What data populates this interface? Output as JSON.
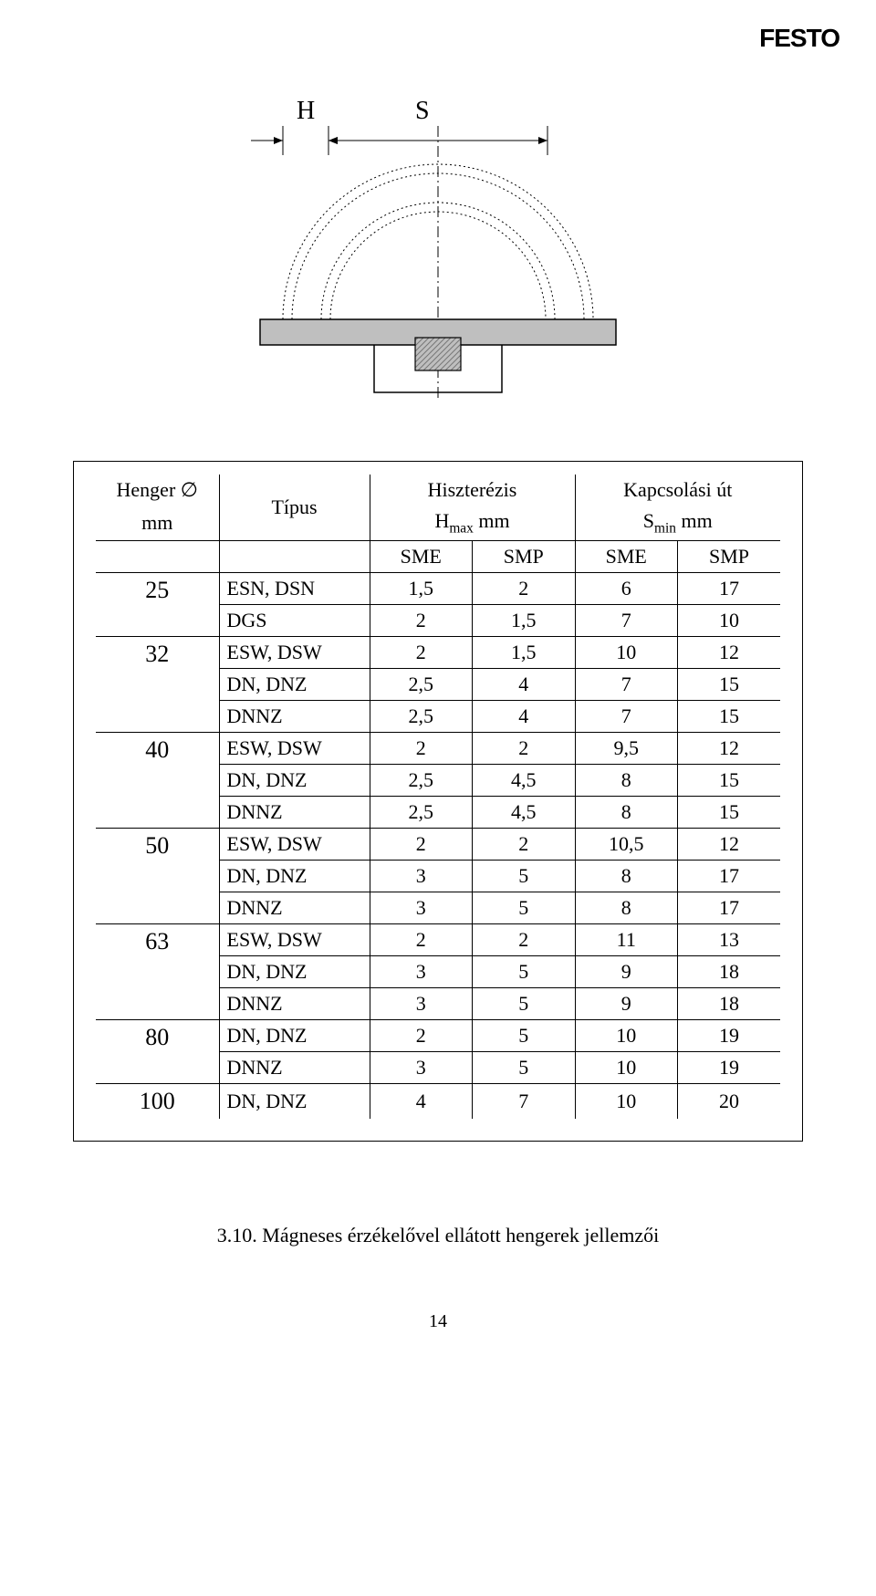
{
  "logo": "FESTO",
  "diagram": {
    "label_H": "H",
    "label_S": "S",
    "colors": {
      "base_fill": "#bfbfbf",
      "block_fill": "#bfbfbf",
      "block_hatch": "#7a7a7a",
      "arc_stroke": "#000000",
      "center_line": "#000000"
    }
  },
  "table": {
    "header": {
      "col_dia_line1": "Henger ∅",
      "col_dia_line2": "mm",
      "col_type": "Típus",
      "col_hist_line1": "Hiszterézis",
      "col_hist_line2_prefix": "H",
      "col_hist_line2_sub": "max",
      "col_hist_line2_suffix": " mm",
      "col_switch_line1": "Kapcsolási út",
      "col_switch_line2_prefix": "S",
      "col_switch_line2_sub": "min",
      "col_switch_line2_suffix": " mm",
      "sub_sme": "SME",
      "sub_smp": "SMP"
    },
    "groups": [
      {
        "dia": "25",
        "rows": [
          {
            "type": "ESN, DSN",
            "h_sme": "1,5",
            "h_smp": "2",
            "s_sme": "6",
            "s_smp": "17"
          },
          {
            "type": "DGS",
            "h_sme": "2",
            "h_smp": "1,5",
            "s_sme": "7",
            "s_smp": "10"
          }
        ]
      },
      {
        "dia": "32",
        "rows": [
          {
            "type": "ESW, DSW",
            "h_sme": "2",
            "h_smp": "1,5",
            "s_sme": "10",
            "s_smp": "12"
          },
          {
            "type": "DN, DNZ",
            "h_sme": "2,5",
            "h_smp": "4",
            "s_sme": "7",
            "s_smp": "15"
          },
          {
            "type": "DNNZ",
            "h_sme": "2,5",
            "h_smp": "4",
            "s_sme": "7",
            "s_smp": "15"
          }
        ]
      },
      {
        "dia": "40",
        "rows": [
          {
            "type": "ESW, DSW",
            "h_sme": "2",
            "h_smp": "2",
            "s_sme": "9,5",
            "s_smp": "12"
          },
          {
            "type": "DN, DNZ",
            "h_sme": "2,5",
            "h_smp": "4,5",
            "s_sme": "8",
            "s_smp": "15"
          },
          {
            "type": "DNNZ",
            "h_sme": "2,5",
            "h_smp": "4,5",
            "s_sme": "8",
            "s_smp": "15"
          }
        ]
      },
      {
        "dia": "50",
        "rows": [
          {
            "type": "ESW, DSW",
            "h_sme": "2",
            "h_smp": "2",
            "s_sme": "10,5",
            "s_smp": "12"
          },
          {
            "type": "DN, DNZ",
            "h_sme": "3",
            "h_smp": "5",
            "s_sme": "8",
            "s_smp": "17"
          },
          {
            "type": "DNNZ",
            "h_sme": "3",
            "h_smp": "5",
            "s_sme": "8",
            "s_smp": "17"
          }
        ]
      },
      {
        "dia": "63",
        "rows": [
          {
            "type": "ESW, DSW",
            "h_sme": "2",
            "h_smp": "2",
            "s_sme": "11",
            "s_smp": "13"
          },
          {
            "type": "DN, DNZ",
            "h_sme": "3",
            "h_smp": "5",
            "s_sme": "9",
            "s_smp": "18"
          },
          {
            "type": "DNNZ",
            "h_sme": "3",
            "h_smp": "5",
            "s_sme": "9",
            "s_smp": "18"
          }
        ]
      },
      {
        "dia": "80",
        "rows": [
          {
            "type": "DN, DNZ",
            "h_sme": "2",
            "h_smp": "5",
            "s_sme": "10",
            "s_smp": "19"
          },
          {
            "type": "DNNZ",
            "h_sme": "3",
            "h_smp": "5",
            "s_sme": "10",
            "s_smp": "19"
          }
        ]
      },
      {
        "dia": "100",
        "rows": [
          {
            "type": "DN, DNZ",
            "h_sme": "4",
            "h_smp": "7",
            "s_sme": "10",
            "s_smp": "20"
          }
        ]
      }
    ]
  },
  "caption": "3.10. Mágneses érzékelővel ellátott hengerek jellemzői",
  "page_number": "14"
}
